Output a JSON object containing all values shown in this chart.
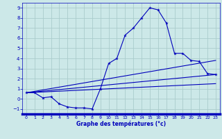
{
  "title": "Graphe des températures (°c)",
  "background_color": "#cce8e8",
  "grid_color": "#aacccc",
  "line_color": "#0000bb",
  "xlim": [
    -0.5,
    23.5
  ],
  "ylim": [
    -1.5,
    9.5
  ],
  "xticks": [
    0,
    1,
    2,
    3,
    4,
    5,
    6,
    7,
    8,
    9,
    10,
    11,
    12,
    13,
    14,
    15,
    16,
    17,
    18,
    19,
    20,
    21,
    22,
    23
  ],
  "yticks": [
    -1,
    0,
    1,
    2,
    3,
    4,
    5,
    6,
    7,
    8,
    9
  ],
  "line1_x": [
    0,
    1,
    2,
    3,
    4,
    5,
    6,
    7,
    8,
    9,
    10,
    11,
    12,
    13,
    14,
    15,
    16,
    17,
    18,
    19,
    20,
    21,
    22,
    23
  ],
  "line1_y": [
    0.6,
    0.6,
    0.1,
    0.2,
    -0.5,
    -0.8,
    -0.9,
    -0.9,
    -1.0,
    1.0,
    3.5,
    4.0,
    6.3,
    7.0,
    8.0,
    9.0,
    8.8,
    7.5,
    4.5,
    4.5,
    3.8,
    3.7,
    2.5,
    2.4
  ],
  "line2_x": [
    0,
    23
  ],
  "line2_y": [
    0.6,
    1.5
  ],
  "line3_x": [
    0,
    23
  ],
  "line3_y": [
    0.6,
    2.4
  ],
  "line4_x": [
    0,
    23
  ],
  "line4_y": [
    0.6,
    3.8
  ]
}
